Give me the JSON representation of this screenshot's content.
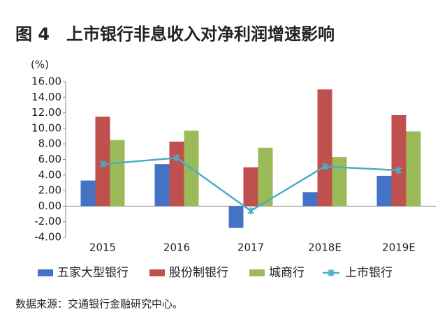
{
  "chart_data": {
    "type": "bar",
    "title": "图 4　上市银行非息收入对净利润增速影响",
    "y_unit": "(%)",
    "source": "数据来源：交通银行金融研究中心。",
    "categories": [
      "2015",
      "2016",
      "2017",
      "2018E",
      "2019E"
    ],
    "series": [
      {
        "name": "五家大型银行",
        "type": "bar",
        "color": "#4472c4",
        "values": [
          3.3,
          5.4,
          -2.8,
          1.8,
          3.9
        ]
      },
      {
        "name": "股份制银行",
        "type": "bar",
        "color": "#c0504d",
        "values": [
          11.5,
          8.3,
          5.0,
          15.0,
          11.7
        ]
      },
      {
        "name": "城商行",
        "type": "bar",
        "color": "#9bbb59",
        "values": [
          8.5,
          9.7,
          7.5,
          6.3,
          9.6
        ]
      },
      {
        "name": "上市银行",
        "type": "line",
        "color": "#4bacc6",
        "values": [
          5.4,
          6.2,
          -0.6,
          5.1,
          4.6
        ]
      }
    ],
    "ylim": [
      -4,
      16
    ],
    "yticks": [
      {
        "value": -4,
        "label": "-4.00"
      },
      {
        "value": -2,
        "label": "-2.00"
      },
      {
        "value": 0,
        "label": "0.00"
      },
      {
        "value": 2,
        "label": "2.00"
      },
      {
        "value": 4,
        "label": "4.00"
      },
      {
        "value": 6,
        "label": "6.00"
      },
      {
        "value": 8,
        "label": "8.00"
      },
      {
        "value": 10,
        "label": "10.00"
      },
      {
        "value": 12,
        "label": "12.00"
      },
      {
        "value": 14,
        "label": "14.00"
      },
      {
        "value": 16,
        "label": "16.00"
      }
    ],
    "grid": false
  }
}
